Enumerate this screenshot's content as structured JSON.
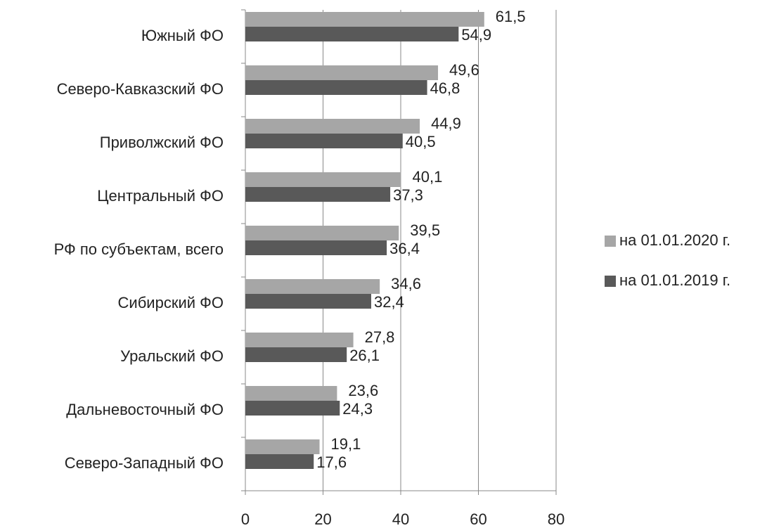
{
  "chart_data": {
    "type": "hbar",
    "categories": [
      "Южный ФО",
      "Северо-Кавказский ФО",
      "Приволжский ФО",
      "Центральный ФО",
      "РФ по субъектам, всего",
      "Сибирский ФО",
      "Уральский ФО",
      "Дальневосточный ФО",
      "Северо-Западный ФО"
    ],
    "series": [
      {
        "name": "на 01.01.2020 г.",
        "color": "#a6a6a6",
        "values": [
          61.5,
          49.6,
          44.9,
          40.1,
          39.5,
          34.6,
          27.8,
          23.6,
          19.1
        ],
        "value_labels": [
          "61,5",
          "49,6",
          "44,9",
          "40,1",
          "39,5",
          "34,6",
          "27,8",
          "23,6",
          "19,1"
        ]
      },
      {
        "name": "на 01.01.2019 г.",
        "color": "#595959",
        "values": [
          54.9,
          46.8,
          40.5,
          37.3,
          36.4,
          32.4,
          26.1,
          24.3,
          17.6
        ],
        "value_labels": [
          "54,9",
          "46,8",
          "40,5",
          "37,3",
          "36,4",
          "32,4",
          "26,1",
          "24,3",
          "17,6"
        ]
      }
    ],
    "xlim": [
      0,
      80
    ],
    "xticks": [
      0,
      20,
      40,
      60,
      80
    ],
    "grid": true,
    "legend": "right"
  }
}
